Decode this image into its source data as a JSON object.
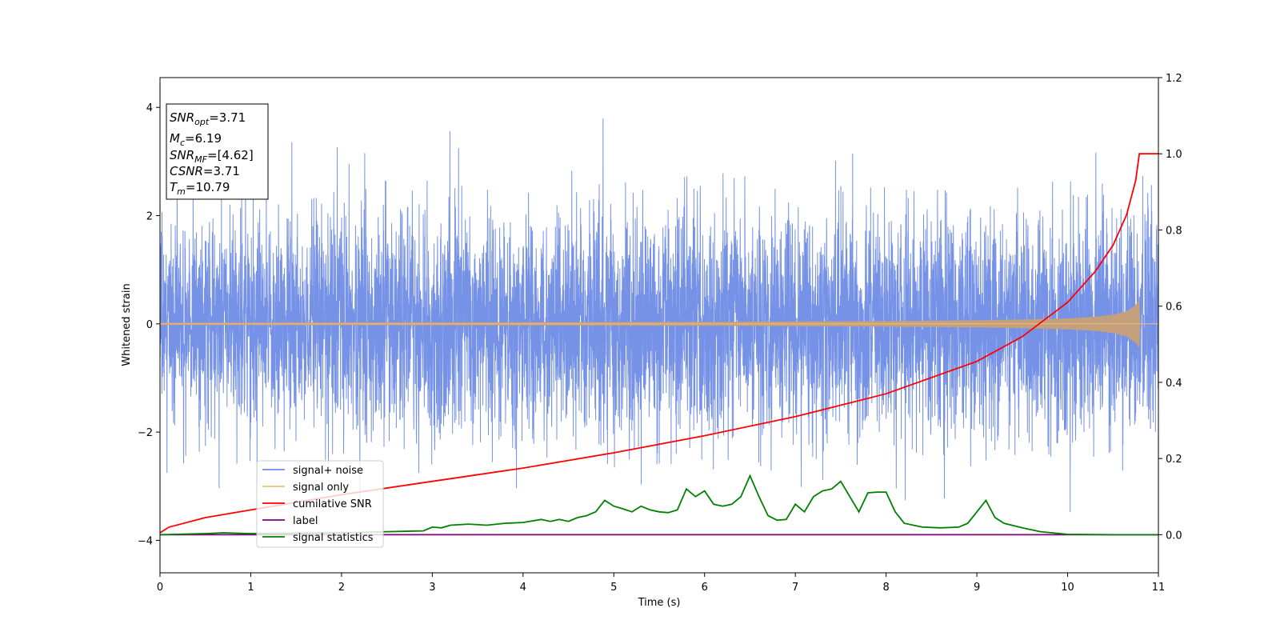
{
  "chart_data": {
    "type": "line",
    "xlabel": "Time (s)",
    "ylabel": "Whitened strain",
    "xlim": [
      0,
      11
    ],
    "ylim": [
      -4.6,
      4.55
    ],
    "y2lim": [
      -0.1,
      1.2
    ],
    "x_ticks": [
      0,
      1,
      2,
      3,
      4,
      5,
      6,
      7,
      8,
      9,
      10,
      11
    ],
    "y_ticks": [
      -4,
      -2,
      0,
      2,
      4
    ],
    "y2_ticks": [
      "0.0",
      "0.2",
      "0.4",
      "0.6",
      "0.8",
      "1.0",
      "1.2"
    ],
    "grid": false,
    "legend_position": "lower-left",
    "stats_box": {
      "snr_opt": {
        "main": "SNR",
        "sub": "opt",
        "value": "=3.71"
      },
      "mc": {
        "main": "M",
        "sub": "c",
        "value": "=6.19"
      },
      "snr_mf": {
        "main": "SNR",
        "sub": "MF",
        "value": "=[4.62]"
      },
      "csnr": {
        "main": "CSNR",
        "value": "=3.71"
      },
      "tm": {
        "main": "T",
        "sub": "m",
        "value": "=10.79"
      }
    },
    "series": [
      {
        "name": "signal+ noise",
        "color": "#6f8ce6",
        "axis": "left",
        "description_values": {
          "mean": 0,
          "std": 1,
          "t_start": 0,
          "t_end": 11,
          "max": 4.13,
          "min": -4.15
        }
      },
      {
        "name": "signal only",
        "color": "#f5be7a",
        "axis": "left",
        "envelope": {
          "t": [
            0,
            2,
            4,
            6,
            8,
            9,
            9.5,
            10,
            10.3,
            10.5,
            10.65,
            10.75,
            10.79,
            10.8
          ],
          "amplitude": [
            0.02,
            0.025,
            0.03,
            0.035,
            0.05,
            0.065,
            0.08,
            0.1,
            0.13,
            0.17,
            0.23,
            0.35,
            0.45,
            0.0
          ]
        }
      },
      {
        "name": "cumilative SNR",
        "color": "#ff0000",
        "axis": "right",
        "x": [
          0,
          0.1,
          0.5,
          1,
          2,
          3,
          4,
          5,
          6,
          7,
          8,
          9,
          9.5,
          10,
          10.3,
          10.5,
          10.65,
          10.75,
          10.79,
          11
        ],
        "y": [
          0.005,
          0.02,
          0.045,
          0.065,
          0.105,
          0.14,
          0.175,
          0.215,
          0.26,
          0.31,
          0.37,
          0.455,
          0.52,
          0.61,
          0.69,
          0.76,
          0.84,
          0.93,
          1.0,
          1.0
        ]
      },
      {
        "name": "label",
        "color": "#800080",
        "axis": "right",
        "x": [
          0,
          11
        ],
        "y": [
          0,
          0
        ]
      },
      {
        "name": "signal statistics",
        "color": "#008000",
        "axis": "right",
        "x": [
          0,
          0.5,
          0.7,
          1,
          2,
          2.5,
          2.9,
          3,
          3.1,
          3.2,
          3.4,
          3.6,
          3.8,
          4,
          4.2,
          4.3,
          4.4,
          4.5,
          4.6,
          4.7,
          4.8,
          4.9,
          5,
          5.1,
          5.2,
          5.3,
          5.4,
          5.5,
          5.6,
          5.7,
          5.8,
          5.9,
          6,
          6.1,
          6.2,
          6.3,
          6.4,
          6.5,
          6.6,
          6.7,
          6.8,
          6.9,
          7,
          7.1,
          7.2,
          7.3,
          7.4,
          7.5,
          7.6,
          7.7,
          7.8,
          7.9,
          8,
          8.1,
          8.2,
          8.4,
          8.6,
          8.8,
          8.9,
          9,
          9.1,
          9.2,
          9.3,
          9.5,
          9.7,
          10,
          10.5,
          11
        ],
        "y": [
          0.0,
          0.003,
          0.005,
          0.003,
          0.005,
          0.008,
          0.01,
          0.02,
          0.018,
          0.025,
          0.028,
          0.025,
          0.03,
          0.032,
          0.04,
          0.035,
          0.04,
          0.035,
          0.045,
          0.05,
          0.06,
          0.09,
          0.075,
          0.068,
          0.06,
          0.075,
          0.065,
          0.06,
          0.058,
          0.065,
          0.12,
          0.1,
          0.115,
          0.08,
          0.075,
          0.08,
          0.1,
          0.155,
          0.1,
          0.05,
          0.038,
          0.04,
          0.08,
          0.06,
          0.1,
          0.115,
          0.12,
          0.14,
          0.1,
          0.06,
          0.11,
          0.112,
          0.112,
          0.06,
          0.03,
          0.02,
          0.018,
          0.02,
          0.03,
          0.06,
          0.09,
          0.045,
          0.03,
          0.018,
          0.008,
          0.001,
          0.0,
          0.0
        ]
      }
    ]
  }
}
